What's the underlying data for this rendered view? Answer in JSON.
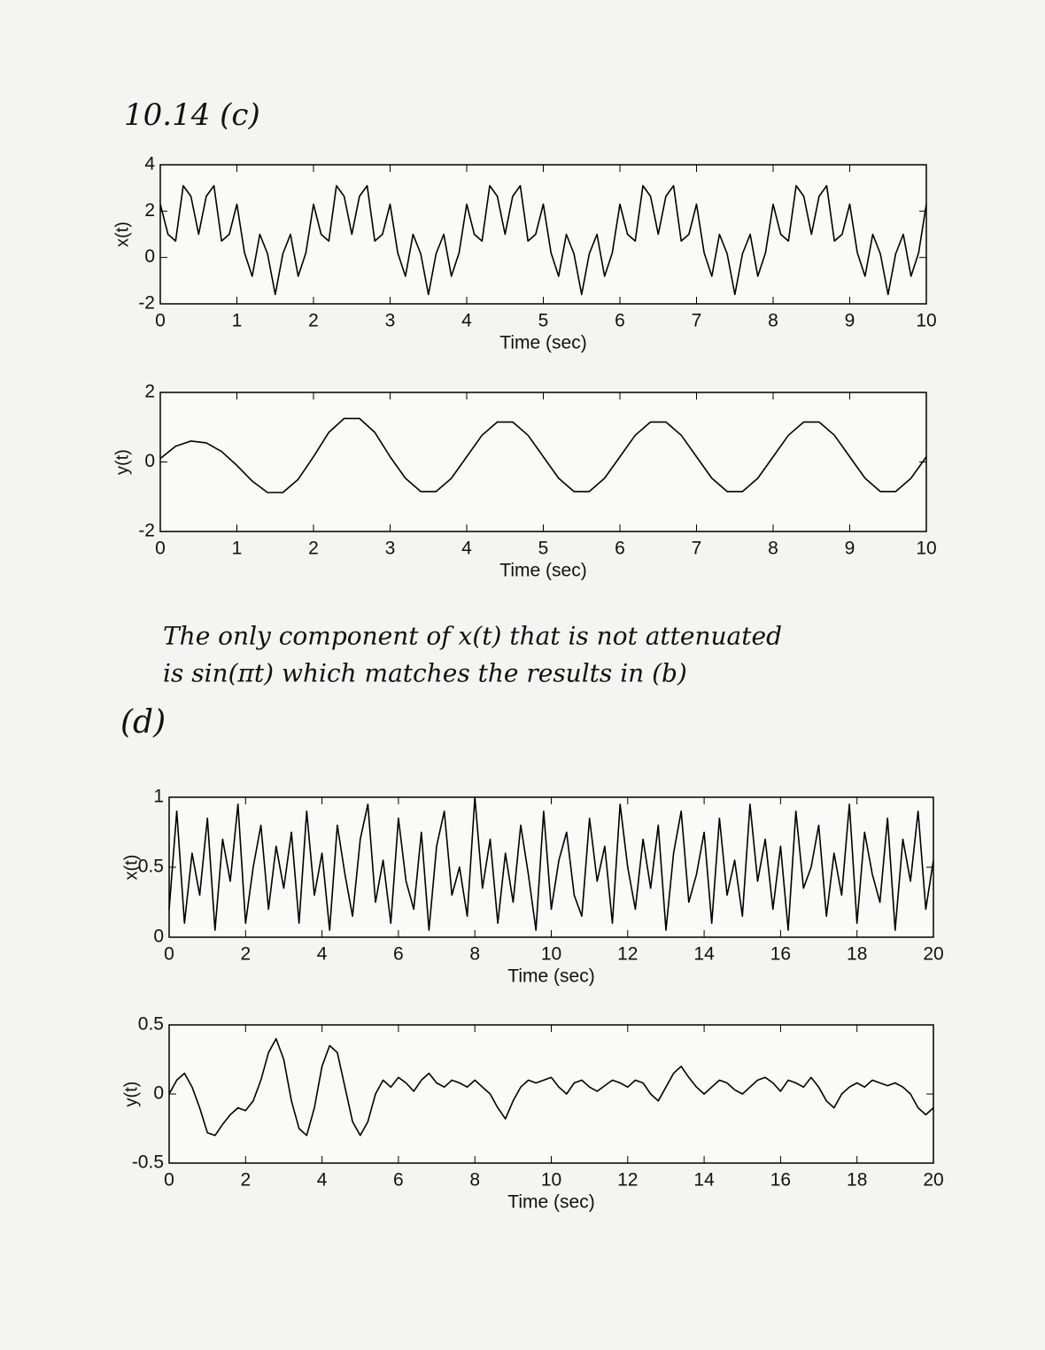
{
  "headings": [
    "10.14 (c)",
    "(d)"
  ],
  "note": [
    "The only component of x(t) that is not attenuated",
    "is sin(πt) which matches the results in (b)"
  ],
  "chart_data": [
    {
      "type": "line",
      "xlabel": "Time (sec)",
      "ylabel": "x(t)",
      "color": "#000000",
      "xlim": [
        0,
        10
      ],
      "ylim": [
        -2,
        4
      ],
      "xticks": [
        0,
        1,
        2,
        3,
        4,
        5,
        6,
        7,
        8,
        9,
        10
      ],
      "yticks": [
        -2,
        0,
        2,
        4
      ],
      "x": [
        0,
        0.1,
        0.2,
        0.3,
        0.4,
        0.5,
        0.6,
        0.7,
        0.8,
        0.9,
        1,
        1.1,
        1.2,
        1.3,
        1.4,
        1.5,
        1.6,
        1.7,
        1.8,
        1.9,
        2,
        2.1,
        2.2,
        2.3,
        2.4,
        2.5,
        2.6,
        2.7,
        2.8,
        2.9,
        3,
        3.1,
        3.2,
        3.3,
        3.4,
        3.5,
        3.6,
        3.7,
        3.8,
        3.9,
        4,
        4.1,
        4.2,
        4.3,
        4.4,
        4.5,
        4.6,
        4.7,
        4.8,
        4.9,
        5,
        5.1,
        5.2,
        5.3,
        5.4,
        5.5,
        5.6,
        5.7,
        5.8,
        5.9,
        6,
        6.1,
        6.2,
        6.3,
        6.4,
        6.5,
        6.6,
        6.7,
        6.8,
        6.9,
        7,
        7.1,
        7.2,
        7.3,
        7.4,
        7.5,
        7.6,
        7.7,
        7.8,
        7.9,
        8,
        8.1,
        8.2,
        8.3,
        8.4,
        8.5,
        8.6,
        8.7,
        8.8,
        8.9,
        9,
        9.1,
        9.2,
        9.3,
        9.4,
        9.5,
        9.6,
        9.7,
        9.8,
        9.9,
        10
      ],
      "values": [
        2.3,
        1.0,
        0.71,
        3.1,
        2.64,
        1.0,
        2.64,
        3.1,
        0.71,
        1.0,
        2.3,
        0.2,
        -0.81,
        1.0,
        0.16,
        -1.6,
        0.16,
        1.0,
        -0.81,
        0.2,
        2.3,
        1.0,
        0.71,
        3.1,
        2.64,
        1.0,
        2.64,
        3.1,
        0.71,
        1.0,
        2.3,
        0.2,
        -0.81,
        1.0,
        0.16,
        -1.6,
        0.16,
        1.0,
        -0.81,
        0.2,
        2.3,
        1.0,
        0.71,
        3.1,
        2.64,
        1.0,
        2.64,
        3.1,
        0.71,
        1.0,
        2.3,
        0.2,
        -0.81,
        1.0,
        0.16,
        -1.6,
        0.16,
        1.0,
        -0.81,
        0.2,
        2.3,
        1.0,
        0.71,
        3.1,
        2.64,
        1.0,
        2.64,
        3.1,
        0.71,
        1.0,
        2.3,
        0.2,
        -0.81,
        1.0,
        0.16,
        -1.6,
        0.16,
        1.0,
        -0.81,
        0.2,
        2.3,
        1.0,
        0.71,
        3.1,
        2.64,
        1.0,
        2.64,
        3.1,
        0.71,
        1.0,
        2.3,
        0.2,
        -0.81,
        1.0,
        0.16,
        -1.6,
        0.16,
        1.0,
        -0.81,
        0.2,
        2.3
      ]
    },
    {
      "type": "line",
      "xlabel": "Time (sec)",
      "ylabel": "y(t)",
      "color": "#000000",
      "xlim": [
        0,
        10
      ],
      "ylim": [
        -2,
        2
      ],
      "xticks": [
        0,
        1,
        2,
        3,
        4,
        5,
        6,
        7,
        8,
        9,
        10
      ],
      "yticks": [
        -2,
        0,
        2
      ],
      "x": [
        0,
        0.2,
        0.4,
        0.6,
        0.8,
        1,
        1.2,
        1.4,
        1.6,
        1.8,
        2,
        2.2,
        2.4,
        2.6,
        2.8,
        3,
        3.2,
        3.4,
        3.6,
        3.8,
        4,
        4.2,
        4.4,
        4.6,
        4.8,
        5,
        5.2,
        5.4,
        5.6,
        5.8,
        6,
        6.2,
        6.4,
        6.6,
        6.8,
        7,
        7.2,
        7.4,
        7.6,
        7.8,
        8,
        8.2,
        8.4,
        8.6,
        8.8,
        9,
        9.2,
        9.4,
        9.6,
        9.8,
        10
      ],
      "values": [
        0.1,
        0.45,
        0.6,
        0.55,
        0.3,
        -0.1,
        -0.55,
        -0.88,
        -0.88,
        -0.5,
        0.15,
        0.85,
        1.25,
        1.25,
        0.85,
        0.15,
        -0.47,
        -0.85,
        -0.85,
        -0.47,
        0.15,
        0.77,
        1.15,
        1.15,
        0.77,
        0.15,
        -0.47,
        -0.85,
        -0.85,
        -0.47,
        0.15,
        0.77,
        1.15,
        1.15,
        0.77,
        0.15,
        -0.47,
        -0.85,
        -0.85,
        -0.47,
        0.15,
        0.77,
        1.15,
        1.15,
        0.77,
        0.15,
        -0.47,
        -0.85,
        -0.85,
        -0.47,
        0.15
      ]
    },
    {
      "type": "line",
      "xlabel": "Time (sec)",
      "ylabel": "x(t)",
      "color": "#000000",
      "xlim": [
        0,
        20
      ],
      "ylim": [
        0,
        1
      ],
      "xticks": [
        0,
        2,
        4,
        6,
        8,
        10,
        12,
        14,
        16,
        18,
        20
      ],
      "yticks": [
        0,
        0.5,
        1
      ],
      "x": [
        0,
        0.2,
        0.4,
        0.6,
        0.8,
        1,
        1.2,
        1.4,
        1.6,
        1.8,
        2,
        2.2,
        2.4,
        2.6,
        2.8,
        3,
        3.2,
        3.4,
        3.6,
        3.8,
        4,
        4.2,
        4.4,
        4.6,
        4.8,
        5,
        5.2,
        5.4,
        5.6,
        5.8,
        6,
        6.2,
        6.4,
        6.6,
        6.8,
        7,
        7.2,
        7.4,
        7.6,
        7.8,
        8,
        8.2,
        8.4,
        8.6,
        8.8,
        9,
        9.2,
        9.4,
        9.6,
        9.8,
        10,
        10.2,
        10.4,
        10.6,
        10.8,
        11,
        11.2,
        11.4,
        11.6,
        11.8,
        12,
        12.2,
        12.4,
        12.6,
        12.8,
        13,
        13.2,
        13.4,
        13.6,
        13.8,
        14,
        14.2,
        14.4,
        14.6,
        14.8,
        15,
        15.2,
        15.4,
        15.6,
        15.8,
        16,
        16.2,
        16.4,
        16.6,
        16.8,
        17,
        17.2,
        17.4,
        17.6,
        17.8,
        18,
        18.2,
        18.4,
        18.6,
        18.8,
        19,
        19.2,
        19.4,
        19.6,
        19.8,
        20
      ],
      "values": [
        0.2,
        0.9,
        0.1,
        0.6,
        0.3,
        0.85,
        0.05,
        0.7,
        0.4,
        0.95,
        0.1,
        0.5,
        0.8,
        0.2,
        0.65,
        0.35,
        0.75,
        0.1,
        0.9,
        0.3,
        0.6,
        0.05,
        0.8,
        0.45,
        0.15,
        0.7,
        0.95,
        0.25,
        0.55,
        0.1,
        0.85,
        0.4,
        0.2,
        0.75,
        0.05,
        0.65,
        0.9,
        0.3,
        0.5,
        0.15,
        1.0,
        0.35,
        0.7,
        0.1,
        0.6,
        0.25,
        0.8,
        0.45,
        0.05,
        0.9,
        0.2,
        0.55,
        0.75,
        0.3,
        0.15,
        0.85,
        0.4,
        0.65,
        0.1,
        0.95,
        0.5,
        0.2,
        0.7,
        0.35,
        0.8,
        0.05,
        0.6,
        0.9,
        0.25,
        0.45,
        0.75,
        0.1,
        0.85,
        0.3,
        0.55,
        0.15,
        0.95,
        0.4,
        0.7,
        0.2,
        0.65,
        0.05,
        0.9,
        0.35,
        0.5,
        0.8,
        0.15,
        0.6,
        0.3,
        0.95,
        0.1,
        0.75,
        0.45,
        0.25,
        0.85,
        0.05,
        0.7,
        0.4,
        0.9,
        0.2,
        0.55
      ]
    },
    {
      "type": "line",
      "xlabel": "Time (sec)",
      "ylabel": "y(t)",
      "color": "#000000",
      "xlim": [
        0,
        20
      ],
      "ylim": [
        -0.5,
        0.5
      ],
      "xticks": [
        0,
        2,
        4,
        6,
        8,
        10,
        12,
        14,
        16,
        18,
        20
      ],
      "yticks": [
        -0.5,
        0,
        0.5
      ],
      "x": [
        0,
        0.2,
        0.4,
        0.6,
        0.8,
        1,
        1.2,
        1.4,
        1.6,
        1.8,
        2,
        2.2,
        2.4,
        2.6,
        2.8,
        3,
        3.2,
        3.4,
        3.6,
        3.8,
        4,
        4.2,
        4.4,
        4.6,
        4.8,
        5,
        5.2,
        5.4,
        5.6,
        5.8,
        6,
        6.2,
        6.4,
        6.6,
        6.8,
        7,
        7.2,
        7.4,
        7.6,
        7.8,
        8,
        8.2,
        8.4,
        8.6,
        8.8,
        9,
        9.2,
        9.4,
        9.6,
        9.8,
        10,
        10.2,
        10.4,
        10.6,
        10.8,
        11,
        11.2,
        11.4,
        11.6,
        11.8,
        12,
        12.2,
        12.4,
        12.6,
        12.8,
        13,
        13.2,
        13.4,
        13.6,
        13.8,
        14,
        14.2,
        14.4,
        14.6,
        14.8,
        15,
        15.2,
        15.4,
        15.6,
        15.8,
        16,
        16.2,
        16.4,
        16.6,
        16.8,
        17,
        17.2,
        17.4,
        17.6,
        17.8,
        18,
        18.2,
        18.4,
        18.6,
        18.8,
        19,
        19.2,
        19.4,
        19.6,
        19.8,
        20
      ],
      "values": [
        0,
        0.1,
        0.15,
        0.05,
        -0.1,
        -0.28,
        -0.3,
        -0.22,
        -0.15,
        -0.1,
        -0.12,
        -0.05,
        0.1,
        0.3,
        0.4,
        0.25,
        -0.05,
        -0.25,
        -0.3,
        -0.1,
        0.2,
        0.35,
        0.3,
        0.05,
        -0.2,
        -0.3,
        -0.2,
        0,
        0.1,
        0.05,
        0.12,
        0.08,
        0.02,
        0.1,
        0.15,
        0.08,
        0.05,
        0.1,
        0.08,
        0.05,
        0.1,
        0.05,
        0,
        -0.1,
        -0.18,
        -0.05,
        0.05,
        0.1,
        0.08,
        0.1,
        0.12,
        0.05,
        0,
        0.08,
        0.1,
        0.05,
        0.02,
        0.06,
        0.1,
        0.08,
        0.05,
        0.1,
        0.08,
        0,
        -0.05,
        0.05,
        0.15,
        0.2,
        0.12,
        0.05,
        0,
        0.05,
        0.1,
        0.08,
        0.03,
        0,
        0.05,
        0.1,
        0.12,
        0.08,
        0.02,
        0.1,
        0.08,
        0.05,
        0.12,
        0.05,
        -0.05,
        -0.1,
        0,
        0.05,
        0.08,
        0.05,
        0.1,
        0.08,
        0.06,
        0.08,
        0.05,
        0,
        -0.1,
        -0.15,
        -0.1
      ]
    }
  ]
}
